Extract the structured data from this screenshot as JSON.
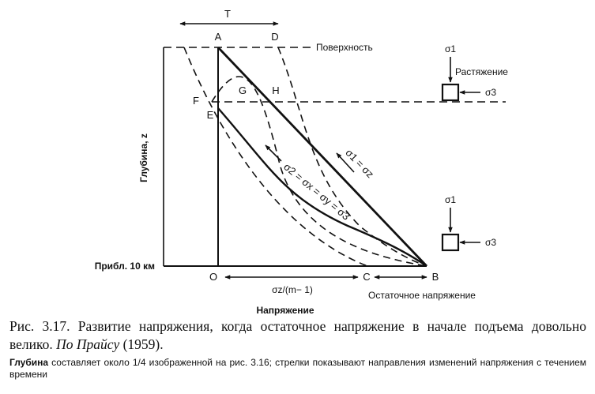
{
  "diagram": {
    "axis": {
      "vertical_label": "Глубина, z",
      "bottom_depth_label": "Прибл. 10 км",
      "horizontal_label": "Напряжение"
    },
    "points": {
      "A": "A",
      "D": "D",
      "F": "F",
      "E": "E",
      "G": "G",
      "H": "H",
      "O": "O",
      "C": "C",
      "B": "B"
    },
    "labels": {
      "top_arrow": "T",
      "surface": "Поверхность",
      "tension": "Растяжение",
      "residual_stress": "Остаточное напряжение",
      "oc_interval": "σz/(m− 1)",
      "line_s1_sz": "σ1 = σz",
      "line_s2_sx_sy_s3": "σ2 = σx = σy = σ3"
    },
    "element_top": {
      "sigma1": "σ1",
      "sigma3": "σ3"
    },
    "element_bottom": {
      "sigma1": "σ1",
      "sigma3": "σ3"
    },
    "colors": {
      "ink": "#111111",
      "background": "#ffffff"
    }
  },
  "caption": {
    "main_prefix": "Рис. 3.17. Развитие напряжения, когда остаточное напряжение в начале подъема довольно велико.",
    "main_source": "По Прайсу",
    "main_year": "(1959).",
    "note_bold": "Глубина",
    "note_rest": "составляет около 1/4 изображенной на рис. 3.16; стрелки показывают направления изменений напряжения с течением времени"
  }
}
